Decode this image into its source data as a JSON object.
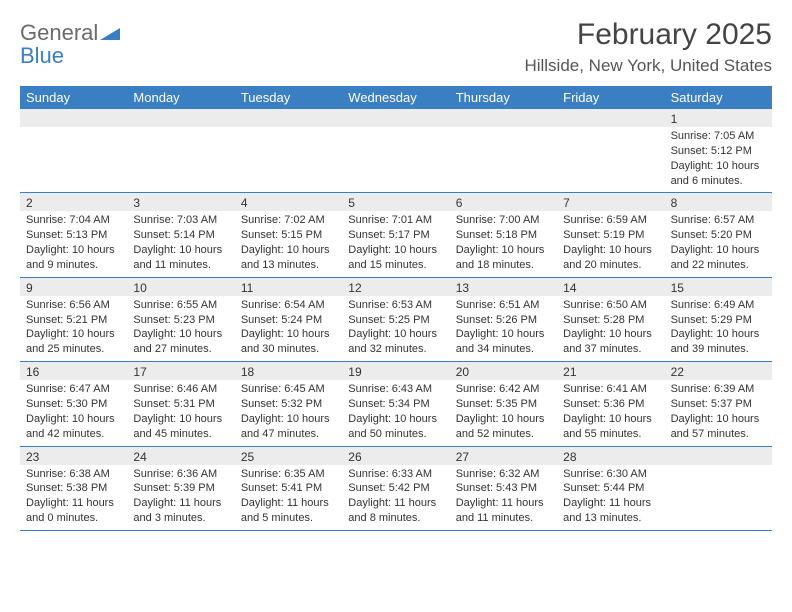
{
  "brand": {
    "word1": "General",
    "word2": "Blue",
    "color_gray": "#6b6b6b",
    "color_blue": "#3a7fc4"
  },
  "title": "February 2025",
  "location": "Hillside, New York, United States",
  "header_bg": "#3a7fc4",
  "header_fg": "#ffffff",
  "stripe_bg": "#ececec",
  "border_color": "#3a7fc4",
  "dow": [
    "Sunday",
    "Monday",
    "Tuesday",
    "Wednesday",
    "Thursday",
    "Friday",
    "Saturday"
  ],
  "weeks": [
    [
      null,
      null,
      null,
      null,
      null,
      null,
      {
        "n": "1",
        "sr": "Sunrise: 7:05 AM",
        "ss": "Sunset: 5:12 PM",
        "dl": "Daylight: 10 hours and 6 minutes."
      }
    ],
    [
      {
        "n": "2",
        "sr": "Sunrise: 7:04 AM",
        "ss": "Sunset: 5:13 PM",
        "dl": "Daylight: 10 hours and 9 minutes."
      },
      {
        "n": "3",
        "sr": "Sunrise: 7:03 AM",
        "ss": "Sunset: 5:14 PM",
        "dl": "Daylight: 10 hours and 11 minutes."
      },
      {
        "n": "4",
        "sr": "Sunrise: 7:02 AM",
        "ss": "Sunset: 5:15 PM",
        "dl": "Daylight: 10 hours and 13 minutes."
      },
      {
        "n": "5",
        "sr": "Sunrise: 7:01 AM",
        "ss": "Sunset: 5:17 PM",
        "dl": "Daylight: 10 hours and 15 minutes."
      },
      {
        "n": "6",
        "sr": "Sunrise: 7:00 AM",
        "ss": "Sunset: 5:18 PM",
        "dl": "Daylight: 10 hours and 18 minutes."
      },
      {
        "n": "7",
        "sr": "Sunrise: 6:59 AM",
        "ss": "Sunset: 5:19 PM",
        "dl": "Daylight: 10 hours and 20 minutes."
      },
      {
        "n": "8",
        "sr": "Sunrise: 6:57 AM",
        "ss": "Sunset: 5:20 PM",
        "dl": "Daylight: 10 hours and 22 minutes."
      }
    ],
    [
      {
        "n": "9",
        "sr": "Sunrise: 6:56 AM",
        "ss": "Sunset: 5:21 PM",
        "dl": "Daylight: 10 hours and 25 minutes."
      },
      {
        "n": "10",
        "sr": "Sunrise: 6:55 AM",
        "ss": "Sunset: 5:23 PM",
        "dl": "Daylight: 10 hours and 27 minutes."
      },
      {
        "n": "11",
        "sr": "Sunrise: 6:54 AM",
        "ss": "Sunset: 5:24 PM",
        "dl": "Daylight: 10 hours and 30 minutes."
      },
      {
        "n": "12",
        "sr": "Sunrise: 6:53 AM",
        "ss": "Sunset: 5:25 PM",
        "dl": "Daylight: 10 hours and 32 minutes."
      },
      {
        "n": "13",
        "sr": "Sunrise: 6:51 AM",
        "ss": "Sunset: 5:26 PM",
        "dl": "Daylight: 10 hours and 34 minutes."
      },
      {
        "n": "14",
        "sr": "Sunrise: 6:50 AM",
        "ss": "Sunset: 5:28 PM",
        "dl": "Daylight: 10 hours and 37 minutes."
      },
      {
        "n": "15",
        "sr": "Sunrise: 6:49 AM",
        "ss": "Sunset: 5:29 PM",
        "dl": "Daylight: 10 hours and 39 minutes."
      }
    ],
    [
      {
        "n": "16",
        "sr": "Sunrise: 6:47 AM",
        "ss": "Sunset: 5:30 PM",
        "dl": "Daylight: 10 hours and 42 minutes."
      },
      {
        "n": "17",
        "sr": "Sunrise: 6:46 AM",
        "ss": "Sunset: 5:31 PM",
        "dl": "Daylight: 10 hours and 45 minutes."
      },
      {
        "n": "18",
        "sr": "Sunrise: 6:45 AM",
        "ss": "Sunset: 5:32 PM",
        "dl": "Daylight: 10 hours and 47 minutes."
      },
      {
        "n": "19",
        "sr": "Sunrise: 6:43 AM",
        "ss": "Sunset: 5:34 PM",
        "dl": "Daylight: 10 hours and 50 minutes."
      },
      {
        "n": "20",
        "sr": "Sunrise: 6:42 AM",
        "ss": "Sunset: 5:35 PM",
        "dl": "Daylight: 10 hours and 52 minutes."
      },
      {
        "n": "21",
        "sr": "Sunrise: 6:41 AM",
        "ss": "Sunset: 5:36 PM",
        "dl": "Daylight: 10 hours and 55 minutes."
      },
      {
        "n": "22",
        "sr": "Sunrise: 6:39 AM",
        "ss": "Sunset: 5:37 PM",
        "dl": "Daylight: 10 hours and 57 minutes."
      }
    ],
    [
      {
        "n": "23",
        "sr": "Sunrise: 6:38 AM",
        "ss": "Sunset: 5:38 PM",
        "dl": "Daylight: 11 hours and 0 minutes."
      },
      {
        "n": "24",
        "sr": "Sunrise: 6:36 AM",
        "ss": "Sunset: 5:39 PM",
        "dl": "Daylight: 11 hours and 3 minutes."
      },
      {
        "n": "25",
        "sr": "Sunrise: 6:35 AM",
        "ss": "Sunset: 5:41 PM",
        "dl": "Daylight: 11 hours and 5 minutes."
      },
      {
        "n": "26",
        "sr": "Sunrise: 6:33 AM",
        "ss": "Sunset: 5:42 PM",
        "dl": "Daylight: 11 hours and 8 minutes."
      },
      {
        "n": "27",
        "sr": "Sunrise: 6:32 AM",
        "ss": "Sunset: 5:43 PM",
        "dl": "Daylight: 11 hours and 11 minutes."
      },
      {
        "n": "28",
        "sr": "Sunrise: 6:30 AM",
        "ss": "Sunset: 5:44 PM",
        "dl": "Daylight: 11 hours and 13 minutes."
      },
      null
    ]
  ]
}
